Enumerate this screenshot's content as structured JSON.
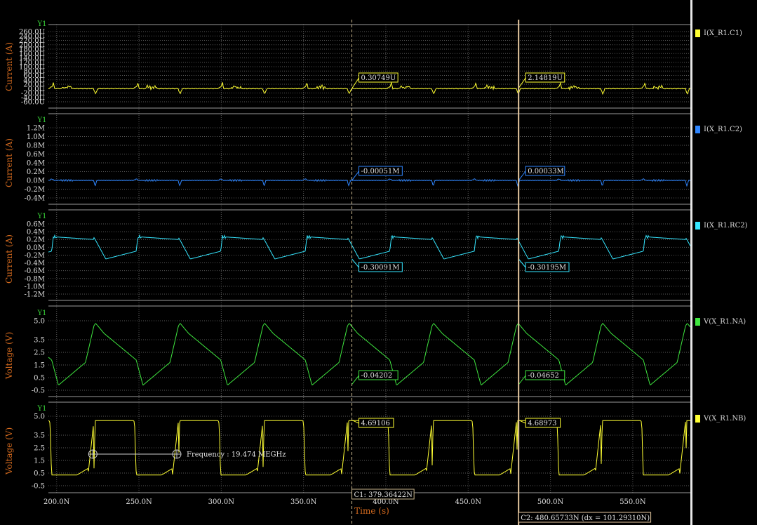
{
  "colors": {
    "background": "#000000",
    "grid": "#5a5a5a",
    "axis_label": "#d2691e",
    "y_tag": "#39d839",
    "tick_text": "#e0e0e0",
    "cursor1": "#c8b48c",
    "cursor2": "#e7c9a0",
    "cursor_box_bg": "#000000"
  },
  "chart_data": [
    {
      "type": "line",
      "y_tag": "Y1",
      "ylabel": "Current (A)",
      "ylim": [
        -60,
        260
      ],
      "yticks": [
        -60,
        -40,
        -20,
        0,
        20,
        40,
        60,
        80,
        100,
        120,
        140,
        160,
        180,
        200,
        220,
        240,
        260
      ],
      "ytick_labels": [
        "-60.0U",
        "-40.0U",
        "-20.0U",
        "0.0U",
        "20.0U",
        "40.0U",
        "60.0U",
        "80.0U",
        "100.0U",
        "120.0U",
        "140.0U",
        "160.0U",
        "180.0U",
        "200.0U",
        "220.0U",
        "240.0U",
        "260.0U"
      ],
      "series": [
        {
          "name": "I(X_R1.C1)",
          "color": "#ffff33",
          "waveform": "current_c1"
        }
      ],
      "cursor_readouts": [
        "0.30749U",
        "2.14819U"
      ],
      "cursor_values": [
        0.3,
        2.1
      ]
    },
    {
      "type": "line",
      "y_tag": "Y1",
      "ylabel": "Current (A)",
      "ylim": [
        -0.4,
        1.2
      ],
      "yticks": [
        -0.4,
        -0.2,
        0.0,
        0.2,
        0.4,
        0.6,
        0.8,
        1.0,
        1.2
      ],
      "ytick_labels": [
        "-0.4M",
        "-0.2M",
        "0.0M",
        "0.2M",
        "0.4M",
        "0.6M",
        "0.8M",
        "1.0M",
        "1.2M"
      ],
      "series": [
        {
          "name": "I(X_R1.C2)",
          "color": "#2f86ff",
          "waveform": "current_c2"
        }
      ],
      "cursor_readouts": [
        "-0.00051M",
        "0.00033M"
      ],
      "cursor_values": [
        -0.0005,
        0.0003
      ]
    },
    {
      "type": "line",
      "y_tag": "Y1",
      "ylabel": "Current (A)",
      "ylim": [
        -1.2,
        0.6
      ],
      "yticks": [
        -1.2,
        -1.0,
        -0.8,
        -0.6,
        -0.4,
        -0.2,
        0.0,
        0.2,
        0.4,
        0.6
      ],
      "ytick_labels": [
        "-1.2M",
        "-1.0M",
        "-0.8M",
        "-0.6M",
        "-0.4M",
        "-0.2M",
        "0.0M",
        "0.2M",
        "0.4M",
        "0.6M"
      ],
      "series": [
        {
          "name": "I(X_R1.RC2)",
          "color": "#35e6ff",
          "waveform": "current_rc2"
        }
      ],
      "cursor_readouts": [
        "-0.30091M",
        "-0.30195M"
      ],
      "cursor_values": [
        -0.3,
        -0.3
      ]
    },
    {
      "type": "line",
      "y_tag": "Y1",
      "ylabel": "Voltage (V)",
      "ylim": [
        -0.5,
        5.0
      ],
      "yticks": [
        -0.5,
        0.5,
        1.5,
        2.5,
        3.5,
        5.0
      ],
      "ytick_labels": [
        "-0.5",
        "0.5",
        "1.5",
        "2.5",
        "3.5",
        "5.0"
      ],
      "series": [
        {
          "name": "V(X_R1.NA)",
          "color": "#3fe63f",
          "waveform": "voltage_na"
        }
      ],
      "cursor_readouts": [
        "-0.04202",
        "-0.04652"
      ],
      "cursor_values": [
        -0.04,
        -0.05
      ]
    },
    {
      "type": "line",
      "y_tag": "Y1",
      "ylabel": "Voltage (V)",
      "ylim": [
        -0.5,
        5.0
      ],
      "yticks": [
        -0.5,
        0.5,
        1.5,
        2.5,
        3.5,
        5.0
      ],
      "ytick_labels": [
        "-0.5",
        "0.5",
        "1.5",
        "2.5",
        "3.5",
        "5.0"
      ],
      "series": [
        {
          "name": "V(X_R1.NB)",
          "color": "#ffff33",
          "waveform": "voltage_nb"
        }
      ],
      "cursor_readouts": [
        "4.69106",
        "4.68973"
      ],
      "cursor_values": [
        4.69,
        4.69
      ],
      "measurement": {
        "x1": 222,
        "x2": 273,
        "y": 2.0,
        "label": "Frequency : 19.474 MEGHz"
      }
    }
  ],
  "x_axis": {
    "xlabel": "Time (s)",
    "xlim": [
      195,
      585
    ],
    "xticks": [
      200,
      250,
      300,
      350,
      400,
      450,
      500,
      550
    ],
    "xtick_labels": [
      "200.0N",
      "250.0N",
      "300.0N",
      "350.0N",
      "400.0N",
      "450.0N",
      "500.0N",
      "550.0N"
    ],
    "period": 51.35,
    "phase": 171.3
  },
  "cursors": {
    "c1": {
      "x": 379.36422,
      "label": "C1: 379.36422N"
    },
    "c2": {
      "x": 480.65733,
      "label": "C2: 480.65733N (dx = 101.29310N)"
    }
  },
  "legend": [
    {
      "label": "I(X_R1.C1)",
      "color": "#ffff33"
    },
    {
      "label": "I(X_R1.C2)",
      "color": "#2f86ff"
    },
    {
      "label": "I(X_R1.RC2)",
      "color": "#35e6ff"
    },
    {
      "label": "V(X_R1.NA)",
      "color": "#3fe63f"
    },
    {
      "label": "V(X_R1.NB)",
      "color": "#ffff33"
    }
  ]
}
